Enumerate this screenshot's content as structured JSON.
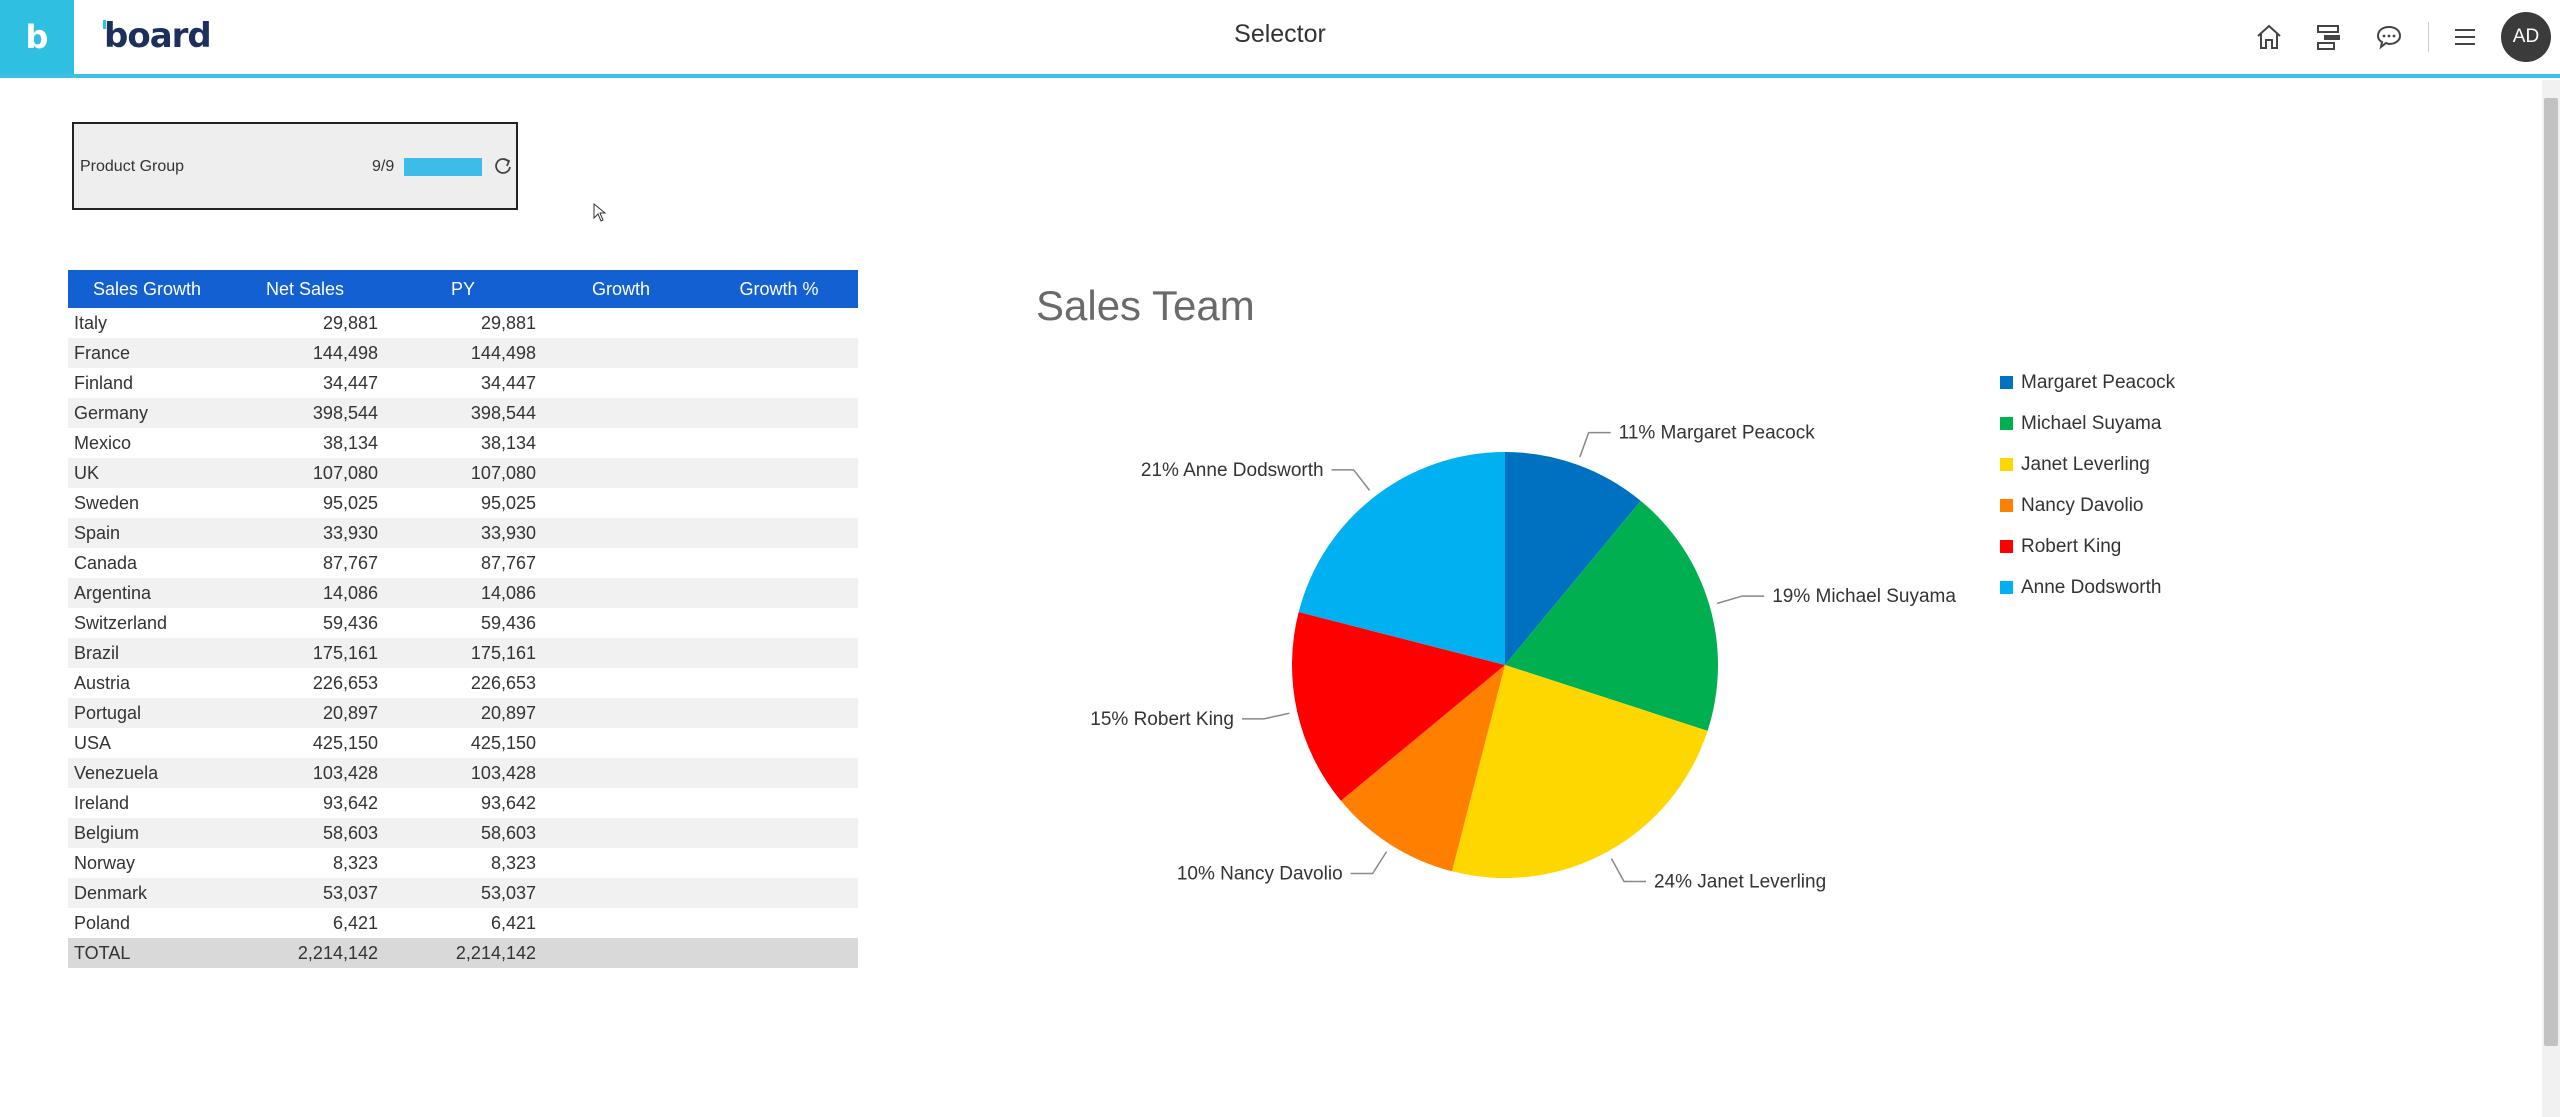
{
  "header": {
    "logo_letter": "b",
    "brand": "board",
    "page_title": "Selector",
    "avatar_initials": "AD",
    "icons": [
      "home-icon",
      "hierarchy-icon",
      "chat-icon",
      "menu-icon"
    ]
  },
  "selector": {
    "label": "Product Group",
    "count": "9/9",
    "progress": 1.0
  },
  "table": {
    "headers": [
      "Sales Growth",
      "Net Sales",
      "PY",
      "Growth",
      "Growth %"
    ],
    "rows": [
      [
        "Italy",
        "29,881",
        "29,881",
        "",
        ""
      ],
      [
        "France",
        "144,498",
        "144,498",
        "",
        ""
      ],
      [
        "Finland",
        "34,447",
        "34,447",
        "",
        ""
      ],
      [
        "Germany",
        "398,544",
        "398,544",
        "",
        ""
      ],
      [
        "Mexico",
        "38,134",
        "38,134",
        "",
        ""
      ],
      [
        "UK",
        "107,080",
        "107,080",
        "",
        ""
      ],
      [
        "Sweden",
        "95,025",
        "95,025",
        "",
        ""
      ],
      [
        "Spain",
        "33,930",
        "33,930",
        "",
        ""
      ],
      [
        "Canada",
        "87,767",
        "87,767",
        "",
        ""
      ],
      [
        "Argentina",
        "14,086",
        "14,086",
        "",
        ""
      ],
      [
        "Switzerland",
        "59,436",
        "59,436",
        "",
        ""
      ],
      [
        "Brazil",
        "175,161",
        "175,161",
        "",
        ""
      ],
      [
        "Austria",
        "226,653",
        "226,653",
        "",
        ""
      ],
      [
        "Portugal",
        "20,897",
        "20,897",
        "",
        ""
      ],
      [
        "USA",
        "425,150",
        "425,150",
        "",
        ""
      ],
      [
        "Venezuela",
        "103,428",
        "103,428",
        "",
        ""
      ],
      [
        "Ireland",
        "93,642",
        "93,642",
        "",
        ""
      ],
      [
        "Belgium",
        "58,603",
        "58,603",
        "",
        ""
      ],
      [
        "Norway",
        "8,323",
        "8,323",
        "",
        ""
      ],
      [
        "Denmark",
        "53,037",
        "53,037",
        "",
        ""
      ],
      [
        "Poland",
        "6,421",
        "6,421",
        "",
        ""
      ]
    ],
    "total": [
      "TOTAL",
      "2,214,142",
      "2,214,142",
      "",
      ""
    ]
  },
  "chart_data": {
    "type": "pie",
    "title": "Sales Team",
    "legend_position": "right",
    "series": [
      {
        "name": "Margaret Peacock",
        "value": 11,
        "label": "11% Margaret Peacock",
        "color": "#0070c0"
      },
      {
        "name": "Michael Suyama",
        "value": 19,
        "label": "19% Michael Suyama",
        "color": "#00b050"
      },
      {
        "name": "Janet Leverling",
        "value": 24,
        "label": "24% Janet Leverling",
        "color": "#ffd700"
      },
      {
        "name": "Nancy Davolio",
        "value": 10,
        "label": "10% Nancy Davolio",
        "color": "#ff7f00"
      },
      {
        "name": "Robert King",
        "value": 15,
        "label": "15% Robert King",
        "color": "#ff0000"
      },
      {
        "name": "Anne Dodsworth",
        "value": 21,
        "label": "21% Anne Dodsworth",
        "color": "#00b0f0"
      }
    ]
  }
}
